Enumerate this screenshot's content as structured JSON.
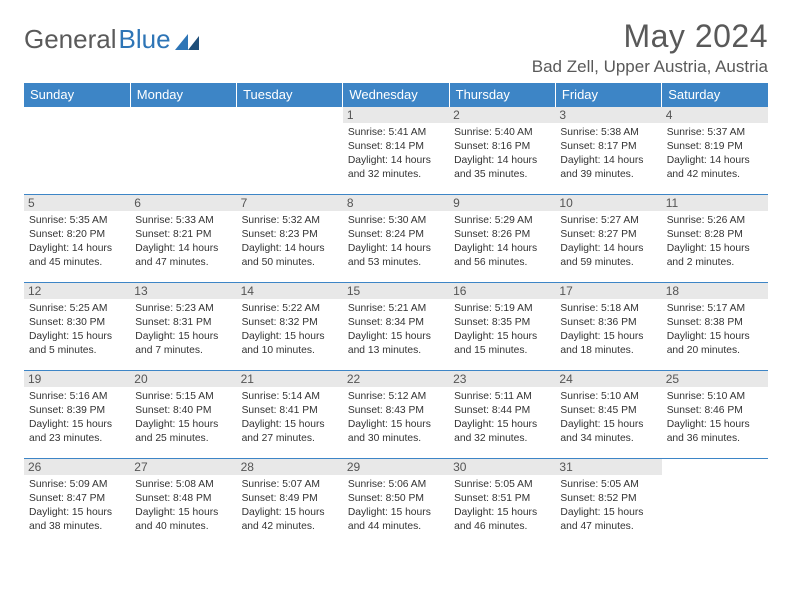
{
  "brand": {
    "part1": "General",
    "part2": "Blue"
  },
  "title": "May 2024",
  "location": "Bad Zell, Upper Austria, Austria",
  "colors": {
    "header_bg": "#3d85c6",
    "header_fg": "#ffffff",
    "row_border": "#3d85c6",
    "daynum_bg": "#e8e8e8",
    "text": "#333333",
    "title": "#595959"
  },
  "weekdays": [
    "Sunday",
    "Monday",
    "Tuesday",
    "Wednesday",
    "Thursday",
    "Friday",
    "Saturday"
  ],
  "weeks": [
    [
      null,
      null,
      null,
      {
        "d": "1",
        "sr": "5:41 AM",
        "ss": "8:14 PM",
        "dl": "14 hours and 32 minutes."
      },
      {
        "d": "2",
        "sr": "5:40 AM",
        "ss": "8:16 PM",
        "dl": "14 hours and 35 minutes."
      },
      {
        "d": "3",
        "sr": "5:38 AM",
        "ss": "8:17 PM",
        "dl": "14 hours and 39 minutes."
      },
      {
        "d": "4",
        "sr": "5:37 AM",
        "ss": "8:19 PM",
        "dl": "14 hours and 42 minutes."
      }
    ],
    [
      {
        "d": "5",
        "sr": "5:35 AM",
        "ss": "8:20 PM",
        "dl": "14 hours and 45 minutes."
      },
      {
        "d": "6",
        "sr": "5:33 AM",
        "ss": "8:21 PM",
        "dl": "14 hours and 47 minutes."
      },
      {
        "d": "7",
        "sr": "5:32 AM",
        "ss": "8:23 PM",
        "dl": "14 hours and 50 minutes."
      },
      {
        "d": "8",
        "sr": "5:30 AM",
        "ss": "8:24 PM",
        "dl": "14 hours and 53 minutes."
      },
      {
        "d": "9",
        "sr": "5:29 AM",
        "ss": "8:26 PM",
        "dl": "14 hours and 56 minutes."
      },
      {
        "d": "10",
        "sr": "5:27 AM",
        "ss": "8:27 PM",
        "dl": "14 hours and 59 minutes."
      },
      {
        "d": "11",
        "sr": "5:26 AM",
        "ss": "8:28 PM",
        "dl": "15 hours and 2 minutes."
      }
    ],
    [
      {
        "d": "12",
        "sr": "5:25 AM",
        "ss": "8:30 PM",
        "dl": "15 hours and 5 minutes."
      },
      {
        "d": "13",
        "sr": "5:23 AM",
        "ss": "8:31 PM",
        "dl": "15 hours and 7 minutes."
      },
      {
        "d": "14",
        "sr": "5:22 AM",
        "ss": "8:32 PM",
        "dl": "15 hours and 10 minutes."
      },
      {
        "d": "15",
        "sr": "5:21 AM",
        "ss": "8:34 PM",
        "dl": "15 hours and 13 minutes."
      },
      {
        "d": "16",
        "sr": "5:19 AM",
        "ss": "8:35 PM",
        "dl": "15 hours and 15 minutes."
      },
      {
        "d": "17",
        "sr": "5:18 AM",
        "ss": "8:36 PM",
        "dl": "15 hours and 18 minutes."
      },
      {
        "d": "18",
        "sr": "5:17 AM",
        "ss": "8:38 PM",
        "dl": "15 hours and 20 minutes."
      }
    ],
    [
      {
        "d": "19",
        "sr": "5:16 AM",
        "ss": "8:39 PM",
        "dl": "15 hours and 23 minutes."
      },
      {
        "d": "20",
        "sr": "5:15 AM",
        "ss": "8:40 PM",
        "dl": "15 hours and 25 minutes."
      },
      {
        "d": "21",
        "sr": "5:14 AM",
        "ss": "8:41 PM",
        "dl": "15 hours and 27 minutes."
      },
      {
        "d": "22",
        "sr": "5:12 AM",
        "ss": "8:43 PM",
        "dl": "15 hours and 30 minutes."
      },
      {
        "d": "23",
        "sr": "5:11 AM",
        "ss": "8:44 PM",
        "dl": "15 hours and 32 minutes."
      },
      {
        "d": "24",
        "sr": "5:10 AM",
        "ss": "8:45 PM",
        "dl": "15 hours and 34 minutes."
      },
      {
        "d": "25",
        "sr": "5:10 AM",
        "ss": "8:46 PM",
        "dl": "15 hours and 36 minutes."
      }
    ],
    [
      {
        "d": "26",
        "sr": "5:09 AM",
        "ss": "8:47 PM",
        "dl": "15 hours and 38 minutes."
      },
      {
        "d": "27",
        "sr": "5:08 AM",
        "ss": "8:48 PM",
        "dl": "15 hours and 40 minutes."
      },
      {
        "d": "28",
        "sr": "5:07 AM",
        "ss": "8:49 PM",
        "dl": "15 hours and 42 minutes."
      },
      {
        "d": "29",
        "sr": "5:06 AM",
        "ss": "8:50 PM",
        "dl": "15 hours and 44 minutes."
      },
      {
        "d": "30",
        "sr": "5:05 AM",
        "ss": "8:51 PM",
        "dl": "15 hours and 46 minutes."
      },
      {
        "d": "31",
        "sr": "5:05 AM",
        "ss": "8:52 PM",
        "dl": "15 hours and 47 minutes."
      },
      null
    ]
  ],
  "labels": {
    "sunrise": "Sunrise:",
    "sunset": "Sunset:",
    "daylight": "Daylight:"
  }
}
